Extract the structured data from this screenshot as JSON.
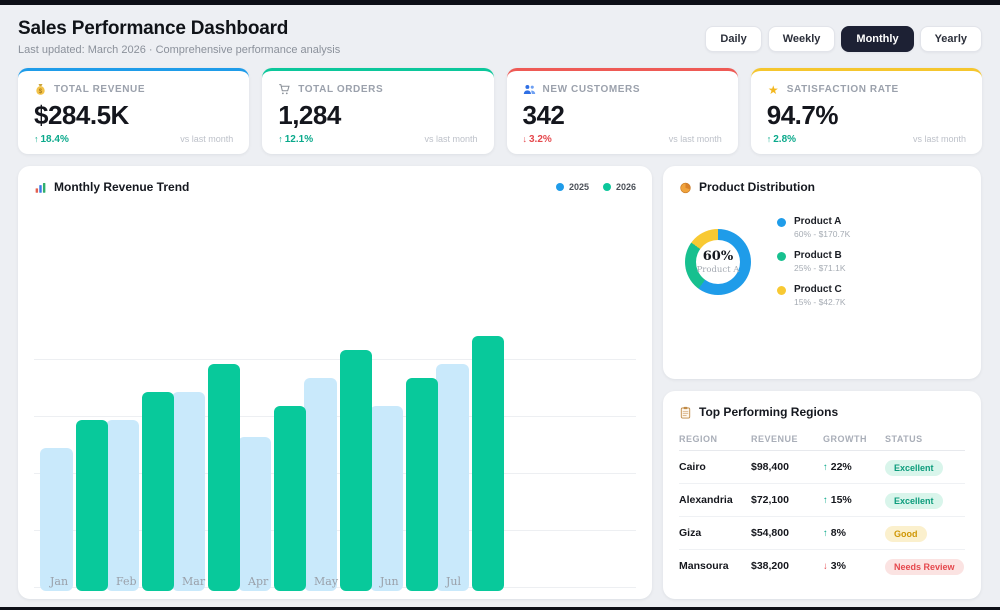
{
  "header": {
    "title": "Sales Performance Dashboard",
    "subtitle": "Last updated: March 2026 · Comprehensive performance analysis",
    "range_buttons": [
      {
        "label": "Daily",
        "active": false
      },
      {
        "label": "Weekly",
        "active": false
      },
      {
        "label": "Monthly",
        "active": true
      },
      {
        "label": "Yearly",
        "active": false
      }
    ],
    "active_button_color": "#1d2134"
  },
  "kpis": [
    {
      "icon": "money-bag-icon",
      "label": "TOTAL REVENUE",
      "value": "$284.5K",
      "change": "18.4%",
      "direction": "up",
      "compare": "vs last month",
      "accent": "#1f9ce9"
    },
    {
      "icon": "cart-icon",
      "label": "TOTAL ORDERS",
      "value": "1,284",
      "change": "12.1%",
      "direction": "up",
      "compare": "vs last month",
      "accent": "#0cc79b"
    },
    {
      "icon": "users-icon",
      "label": "NEW CUSTOMERS",
      "value": "342",
      "change": "3.2%",
      "direction": "down",
      "compare": "vs last month",
      "accent": "#ee5a55"
    },
    {
      "icon": "star-icon",
      "label": "SATISFACTION RATE",
      "value": "94.7%",
      "change": "2.8%",
      "direction": "up",
      "compare": "vs last month",
      "accent": "#f5c62e"
    }
  ],
  "revenue_chart": {
    "icon": "chart-bars-icon",
    "title": "Monthly Revenue Trend",
    "legend": [
      {
        "label": "2025",
        "color": "#1f9ce9"
      },
      {
        "label": "2026",
        "color": "#0cc79b"
      }
    ]
  },
  "product_distribution": {
    "icon": "pie-icon",
    "title": "Product Distribution",
    "center_value": "60%",
    "center_label": "Product A",
    "items": [
      {
        "name": "Product A",
        "detail": "60% - $170.7K",
        "color": "#1f9ce9"
      },
      {
        "name": "Product B",
        "detail": "25% - $71.1K",
        "color": "#17c08f"
      },
      {
        "name": "Product C",
        "detail": "15% - $42.7K",
        "color": "#f8c933"
      }
    ]
  },
  "regions": {
    "icon": "clipboard-icon",
    "title": "Top Performing Regions",
    "columns": [
      "REGION",
      "REVENUE",
      "GROWTH",
      "STATUS"
    ],
    "rows": [
      {
        "region": "Cairo",
        "revenue": "$98,400",
        "growth": "22%",
        "direction": "up",
        "status": "Excellent",
        "status_type": "excellent"
      },
      {
        "region": "Alexandria",
        "revenue": "$72,100",
        "growth": "15%",
        "direction": "up",
        "status": "Excellent",
        "status_type": "excellent"
      },
      {
        "region": "Giza",
        "revenue": "$54,800",
        "growth": "8%",
        "direction": "up",
        "status": "Good",
        "status_type": "good"
      },
      {
        "region": "Mansoura",
        "revenue": "$38,200",
        "growth": "3%",
        "direction": "down",
        "status": "Needs Review",
        "status_type": "needs-review"
      }
    ]
  },
  "chart_data": [
    {
      "type": "bar",
      "title": "Monthly Revenue Trend",
      "categories": [
        "Jan",
        "Feb",
        "Mar",
        "Apr",
        "May",
        "Jun",
        "Jul"
      ],
      "series": [
        {
          "name": "2025",
          "color": "#c9e9fb",
          "values": [
            51,
            61,
            71,
            55,
            76,
            66,
            81
          ]
        },
        {
          "name": "2026",
          "color": "#08c99b",
          "values": [
            61,
            71,
            81,
            66,
            86,
            76,
            91
          ]
        }
      ],
      "unit": "$K (estimated; chart shows no y-axis tick labels)",
      "ylim": [
        0,
        140
      ],
      "grid": "horizontal",
      "legend_position": "top-right"
    },
    {
      "type": "pie",
      "title": "Product Distribution",
      "labels": [
        "Product A",
        "Product B",
        "Product C"
      ],
      "values": [
        60,
        25,
        15
      ],
      "amounts": [
        "$170.7K",
        "$71.1K",
        "$42.7K"
      ],
      "colors": [
        "#1f9ce9",
        "#17c08f",
        "#f8c933"
      ],
      "center_text": [
        "60%",
        "Product A"
      ],
      "legend_position": "right"
    },
    {
      "type": "table",
      "title": "Top Performing Regions",
      "columns": [
        "REGION",
        "REVENUE",
        "GROWTH",
        "STATUS"
      ],
      "rows": [
        [
          "Cairo",
          "$98,400",
          "↑ 22%",
          "Excellent"
        ],
        [
          "Alexandria",
          "$72,100",
          "↑ 15%",
          "Excellent"
        ],
        [
          "Giza",
          "$54,800",
          "↑ 8%",
          "Good"
        ],
        [
          "Mansoura",
          "$38,200",
          "↓ 3%",
          "Needs Review"
        ]
      ]
    }
  ]
}
